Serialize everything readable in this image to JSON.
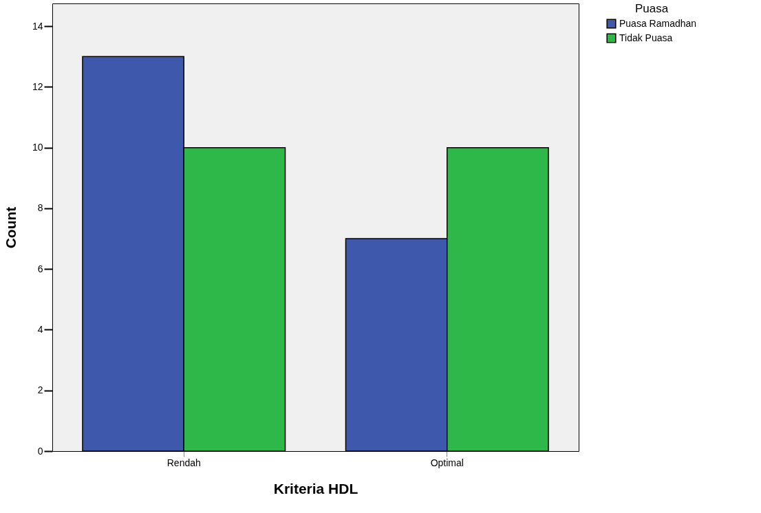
{
  "chart_data": {
    "type": "bar",
    "xlabel": "Kriteria HDL",
    "ylabel": "Count",
    "legend_title": "Puasa",
    "categories": [
      "Rendah",
      "Optimal"
    ],
    "series": [
      {
        "name": "Puasa Ramadhan",
        "color": "#3e58ac",
        "values": [
          13,
          7
        ]
      },
      {
        "name": "Tidak Puasa",
        "color": "#2fb84a",
        "values": [
          10,
          10
        ]
      }
    ],
    "ylim": [
      0,
      14.75
    ],
    "yticks": [
      0,
      2,
      4,
      6,
      8,
      10,
      12,
      14
    ],
    "grid": false,
    "legend": "top right"
  }
}
